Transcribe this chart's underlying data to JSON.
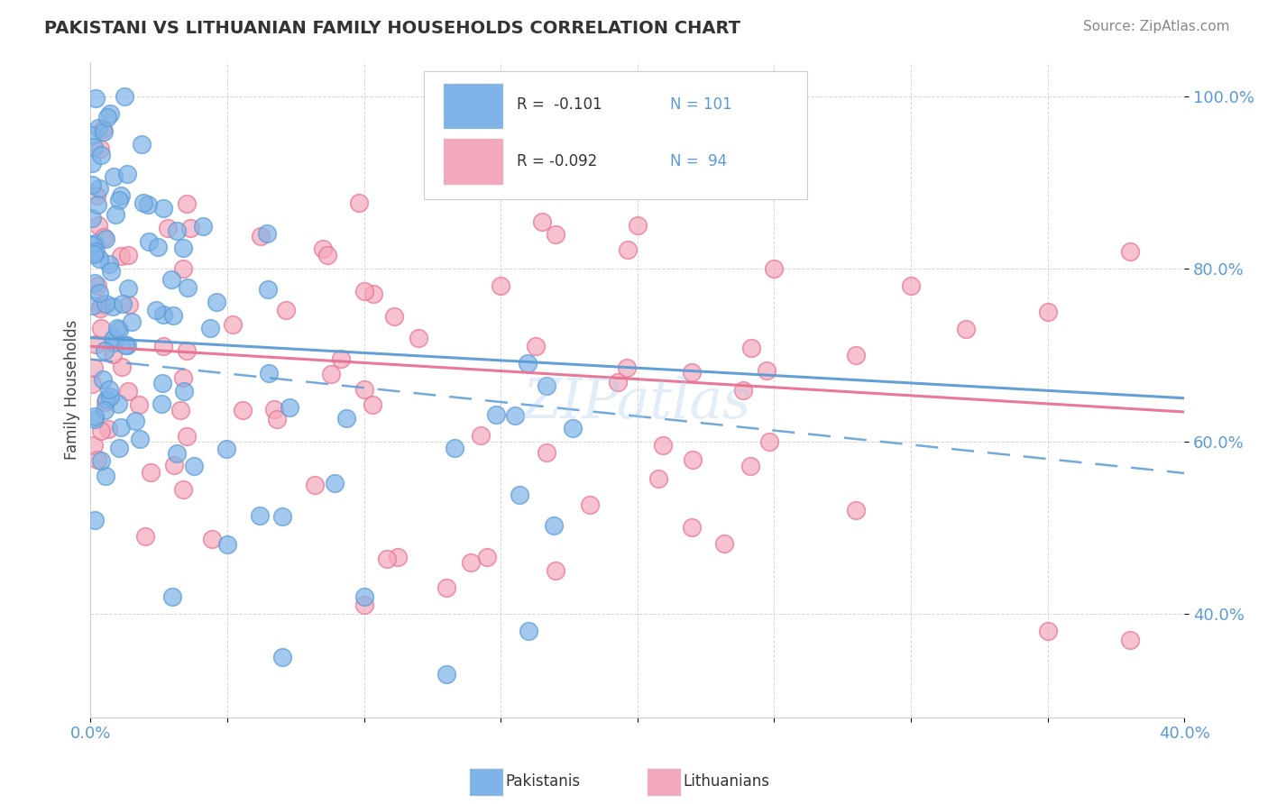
{
  "title": "PAKISTANI VS LITHUANIAN FAMILY HOUSEHOLDS CORRELATION CHART",
  "source": "Source: ZipAtlas.com",
  "ylabel": "Family Households",
  "xlim": [
    0.0,
    0.4
  ],
  "ylim": [
    0.28,
    1.04
  ],
  "yticks": [
    0.4,
    0.6,
    0.8,
    1.0
  ],
  "ytick_labels": [
    "40.0%",
    "60.0%",
    "80.0%",
    "100.0%"
  ],
  "xtick_labels": [
    "0.0%",
    "",
    "",
    "",
    "",
    "",
    "",
    "",
    "40.0%"
  ],
  "blue_color": "#7EB3E8",
  "pink_color": "#F4A8BB",
  "blue_edge": "#5A9BD5",
  "pink_edge": "#E87090",
  "trend_blue_solid": "#5A9BD5",
  "trend_pink_solid": "#E87090",
  "trend_blue_dash": "#7EB3E8",
  "watermark": "ZIPatlas"
}
